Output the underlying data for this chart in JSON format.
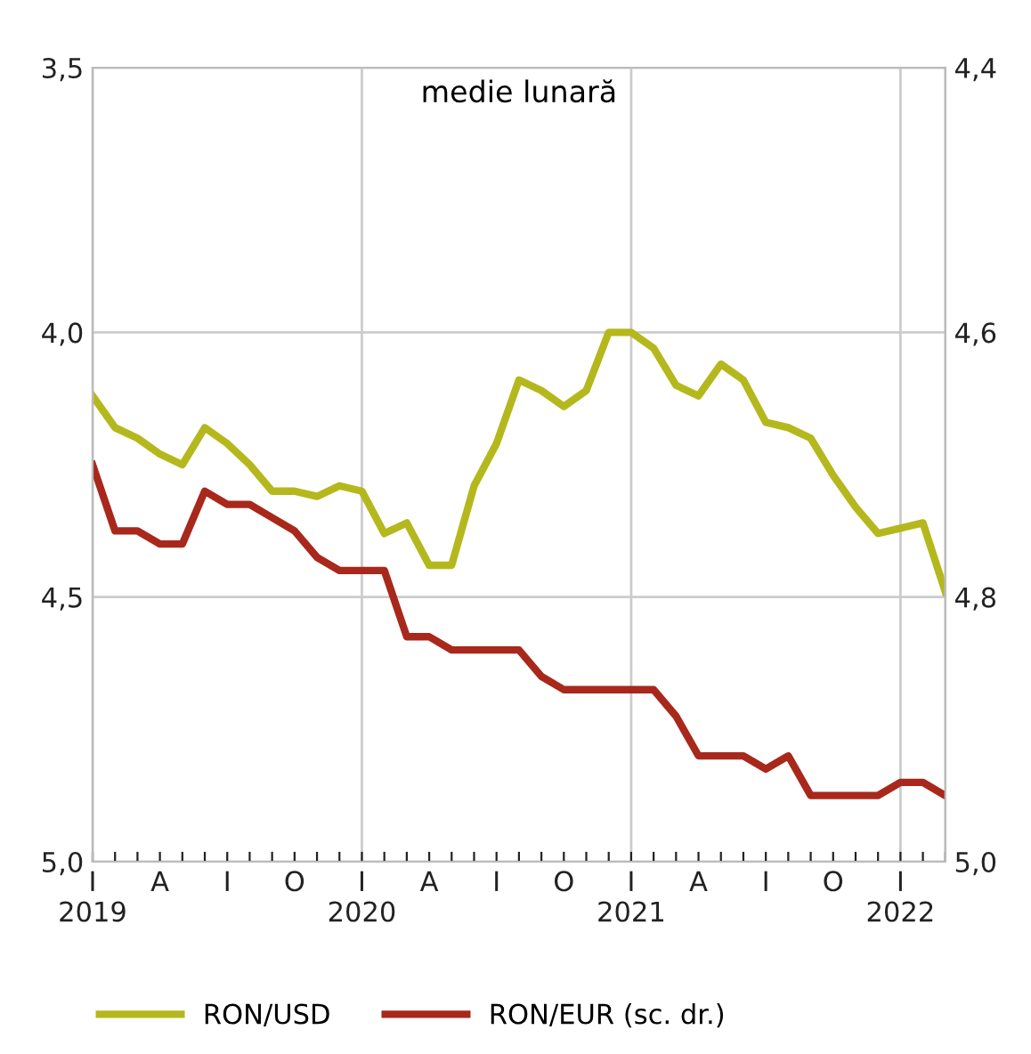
{
  "chart_data": {
    "type": "line",
    "title": "medie lunară",
    "categories": [
      "I\n2019",
      null,
      null,
      "A",
      null,
      null,
      "I",
      null,
      null,
      "O",
      null,
      null,
      "I\n2020",
      null,
      null,
      "A",
      null,
      null,
      "I",
      null,
      null,
      "O",
      null,
      null,
      "I\n2021",
      null,
      null,
      "A",
      null,
      null,
      "I",
      null,
      null,
      "O",
      null,
      null,
      "I\n2022",
      null,
      null
    ],
    "series": [
      {
        "name": "RON/USD",
        "color": "#b5b81c",
        "values": [
          4.12,
          4.18,
          4.2,
          4.23,
          4.25,
          4.18,
          4.21,
          4.25,
          4.3,
          4.3,
          4.31,
          4.29,
          4.3,
          4.38,
          4.36,
          4.44,
          4.44,
          4.29,
          4.21,
          4.09,
          4.11,
          4.14,
          4.11,
          4.0,
          4.0,
          4.03,
          4.1,
          4.12,
          4.06,
          4.09,
          4.17,
          4.18,
          4.2,
          4.27,
          4.33,
          4.38,
          4.37,
          4.36,
          4.49
        ]
      },
      {
        "name": "RON/EUR (sc. dr.)",
        "color": "#a8281c",
        "axis": "y2",
        "values": [
          4.7,
          4.75,
          4.75,
          4.76,
          4.76,
          4.72,
          4.73,
          4.73,
          4.74,
          4.75,
          4.77,
          4.78,
          4.78,
          4.78,
          4.83,
          4.83,
          4.84,
          4.84,
          4.84,
          4.84,
          4.86,
          4.87,
          4.87,
          4.87,
          4.87,
          4.87,
          4.89,
          4.92,
          4.92,
          4.92,
          4.93,
          4.92,
          4.95,
          4.95,
          4.95,
          4.95,
          4.94,
          4.94,
          4.95
        ]
      }
    ],
    "ylim": [
      5.0,
      3.5
    ],
    "yticks": [
      {
        "value": 3.5,
        "label": "3,5"
      },
      {
        "value": 4.0,
        "label": "4,0"
      },
      {
        "value": 4.5,
        "label": "4,5"
      },
      {
        "value": 5.0,
        "label": "5,0"
      }
    ],
    "y2lim": [
      5.0,
      4.4
    ],
    "y2ticks": [
      {
        "value": 4.4,
        "label": "4,4"
      },
      {
        "value": 4.6,
        "label": "4,6"
      },
      {
        "value": 4.8,
        "label": "4,8"
      },
      {
        "value": 5.0,
        "label": "5,0"
      }
    ],
    "grid": true,
    "legend": "bottom",
    "marker": "none",
    "line_style": "solid"
  }
}
